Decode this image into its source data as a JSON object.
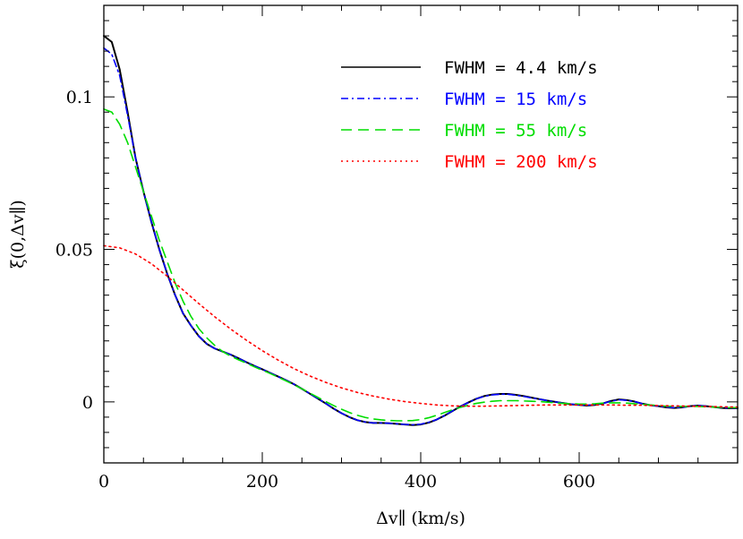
{
  "chart_data": {
    "type": "line",
    "title": "",
    "xlabel": "Δv∥ (km/s)",
    "ylabel": "ξ(0,Δv∥)",
    "xlim": [
      0,
      800
    ],
    "ylim": [
      -0.02,
      0.13
    ],
    "x_ticks": [
      0,
      200,
      400,
      600
    ],
    "x_tick_labels": [
      "0",
      "200",
      "400",
      "600"
    ],
    "y_ticks": [
      0,
      0.05,
      0.1
    ],
    "y_tick_labels": [
      "0",
      "0.05",
      "0.1"
    ],
    "grid": false,
    "legend_position": "top-right",
    "series": [
      {
        "name": "FWHM = 4.4 km/s",
        "color": "#000000",
        "dash": "solid",
        "x": [
          0,
          10,
          20,
          30,
          40,
          50,
          60,
          70,
          80,
          90,
          100,
          110,
          120,
          130,
          140,
          150,
          160,
          170,
          180,
          190,
          200,
          210,
          220,
          230,
          240,
          250,
          260,
          270,
          280,
          290,
          300,
          310,
          320,
          330,
          340,
          350,
          360,
          370,
          380,
          390,
          400,
          410,
          420,
          430,
          440,
          450,
          460,
          470,
          480,
          490,
          500,
          510,
          520,
          530,
          540,
          550,
          560,
          570,
          580,
          590,
          600,
          610,
          620,
          630,
          640,
          650,
          660,
          670,
          680,
          690,
          700,
          710,
          720,
          730,
          740,
          750,
          760,
          770,
          780,
          790,
          800
        ],
        "y": [
          0.12,
          0.118,
          0.109,
          0.095,
          0.08,
          0.069,
          0.059,
          0.05,
          0.042,
          0.035,
          0.029,
          0.025,
          0.0215,
          0.019,
          0.0175,
          0.0165,
          0.0155,
          0.0143,
          0.013,
          0.0118,
          0.0107,
          0.0095,
          0.0083,
          0.0071,
          0.0058,
          0.0043,
          0.0027,
          0.0011,
          -0.0005,
          -0.0022,
          -0.0037,
          -0.005,
          -0.006,
          -0.0066,
          -0.0069,
          -0.0069,
          -0.007,
          -0.0072,
          -0.0074,
          -0.0076,
          -0.0074,
          -0.0068,
          -0.0058,
          -0.0045,
          -0.003,
          -0.0015,
          -0.0002,
          0.001,
          0.0019,
          0.0024,
          0.0026,
          0.0026,
          0.0023,
          0.0019,
          0.0014,
          0.0009,
          0.0004,
          0.0,
          -0.0004,
          -0.0008,
          -0.001,
          -0.0012,
          -0.001,
          -0.0005,
          0.0003,
          0.0008,
          0.0006,
          0.0001,
          -0.0006,
          -0.0011,
          -0.0014,
          -0.0018,
          -0.002,
          -0.0018,
          -0.0014,
          -0.0012,
          -0.0014,
          -0.0017,
          -0.002,
          -0.0021,
          -0.0021
        ]
      },
      {
        "name": "FWHM = 15 km/s",
        "color": "#0000ff",
        "dash": "dashdot",
        "x": [
          0,
          10,
          20,
          30,
          40,
          50,
          60,
          70,
          80,
          90,
          100,
          110,
          120,
          130,
          140,
          150,
          160,
          170,
          180,
          190,
          200,
          210,
          220,
          230,
          240,
          250,
          260,
          270,
          280,
          290,
          300,
          310,
          320,
          330,
          340,
          350,
          360,
          370,
          380,
          390,
          400,
          410,
          420,
          430,
          440,
          450,
          460,
          470,
          480,
          490,
          500,
          510,
          520,
          530,
          540,
          550,
          560,
          570,
          580,
          590,
          600,
          610,
          620,
          630,
          640,
          650,
          660,
          670,
          680,
          690,
          700,
          710,
          720,
          730,
          740,
          750,
          760,
          770,
          780,
          790,
          800
        ],
        "y": [
          0.116,
          0.114,
          0.107,
          0.094,
          0.08,
          0.069,
          0.059,
          0.05,
          0.042,
          0.035,
          0.029,
          0.025,
          0.0215,
          0.019,
          0.0175,
          0.0165,
          0.0155,
          0.0143,
          0.013,
          0.0118,
          0.0107,
          0.0095,
          0.0083,
          0.0071,
          0.0058,
          0.0043,
          0.0027,
          0.0011,
          -0.0005,
          -0.0022,
          -0.0037,
          -0.005,
          -0.006,
          -0.0066,
          -0.0069,
          -0.0069,
          -0.007,
          -0.0072,
          -0.0074,
          -0.0075,
          -0.0073,
          -0.0067,
          -0.0058,
          -0.0045,
          -0.003,
          -0.0015,
          -0.0002,
          0.001,
          0.0018,
          0.0023,
          0.0025,
          0.0025,
          0.0022,
          0.0018,
          0.0013,
          0.0009,
          0.0004,
          0.0,
          -0.0004,
          -0.0007,
          -0.001,
          -0.0011,
          -0.0009,
          -0.0005,
          0.0002,
          0.0007,
          0.0005,
          0.0001,
          -0.0006,
          -0.0011,
          -0.0014,
          -0.0017,
          -0.0019,
          -0.0018,
          -0.0014,
          -0.0012,
          -0.0014,
          -0.0017,
          -0.0019,
          -0.002,
          -0.002
        ]
      },
      {
        "name": "FWHM = 55 km/s",
        "color": "#00dd00",
        "dash": "dashed",
        "x": [
          0,
          10,
          20,
          30,
          40,
          50,
          60,
          70,
          80,
          90,
          100,
          110,
          120,
          130,
          140,
          150,
          160,
          170,
          180,
          190,
          200,
          210,
          220,
          230,
          240,
          250,
          260,
          270,
          280,
          290,
          300,
          310,
          320,
          330,
          340,
          350,
          360,
          370,
          380,
          390,
          400,
          410,
          420,
          430,
          440,
          450,
          460,
          470,
          480,
          490,
          500,
          510,
          520,
          530,
          540,
          550,
          560,
          570,
          580,
          590,
          600,
          610,
          620,
          630,
          640,
          650,
          660,
          670,
          680,
          690,
          700,
          710,
          720,
          730,
          740,
          750,
          760,
          770,
          780,
          790,
          800
        ],
        "y": [
          0.096,
          0.095,
          0.091,
          0.085,
          0.077,
          0.069,
          0.061,
          0.053,
          0.046,
          0.039,
          0.033,
          0.028,
          0.024,
          0.021,
          0.0185,
          0.0165,
          0.015,
          0.0138,
          0.0127,
          0.0115,
          0.0104,
          0.0093,
          0.0081,
          0.0069,
          0.0056,
          0.0043,
          0.0029,
          0.0015,
          0.0001,
          -0.0012,
          -0.0024,
          -0.0035,
          -0.0044,
          -0.0051,
          -0.0056,
          -0.0059,
          -0.0061,
          -0.0062,
          -0.0062,
          -0.0061,
          -0.0058,
          -0.0052,
          -0.0044,
          -0.0035,
          -0.0026,
          -0.0018,
          -0.0011,
          -0.0005,
          -0.0001,
          0.0002,
          0.0004,
          0.0004,
          0.0004,
          0.0003,
          0.0002,
          0.0001,
          -0.0001,
          -0.0003,
          -0.0005,
          -0.0006,
          -0.0007,
          -0.0007,
          -0.0006,
          -0.0004,
          -0.0003,
          -0.0003,
          -0.0004,
          -0.0006,
          -0.0008,
          -0.001,
          -0.0012,
          -0.0014,
          -0.0015,
          -0.0015,
          -0.0015,
          -0.0015,
          -0.0016,
          -0.0017,
          -0.0018,
          -0.0019,
          -0.0019
        ]
      },
      {
        "name": "FWHM = 200 km/s",
        "color": "#ff0000",
        "dash": "dotted",
        "x": [
          0,
          20,
          40,
          60,
          80,
          100,
          120,
          140,
          160,
          180,
          200,
          220,
          240,
          260,
          280,
          300,
          320,
          340,
          360,
          380,
          400,
          420,
          440,
          460,
          480,
          500,
          520,
          540,
          560,
          580,
          600,
          620,
          640,
          660,
          680,
          700,
          720,
          740,
          760,
          780,
          800
        ],
        "y": [
          0.0512,
          0.0505,
          0.0485,
          0.0453,
          0.0412,
          0.0367,
          0.0322,
          0.0279,
          0.0239,
          0.0202,
          0.0168,
          0.0137,
          0.0109,
          0.0085,
          0.0064,
          0.0046,
          0.0031,
          0.0019,
          0.0009,
          0.0001,
          -0.0005,
          -0.001,
          -0.0013,
          -0.0014,
          -0.0014,
          -0.0013,
          -0.0012,
          -0.0011,
          -0.001,
          -0.001,
          -0.001,
          -0.001,
          -0.001,
          -0.0011,
          -0.0011,
          -0.0012,
          -0.0013,
          -0.0014,
          -0.0015,
          -0.0016,
          -0.0017
        ]
      }
    ]
  }
}
